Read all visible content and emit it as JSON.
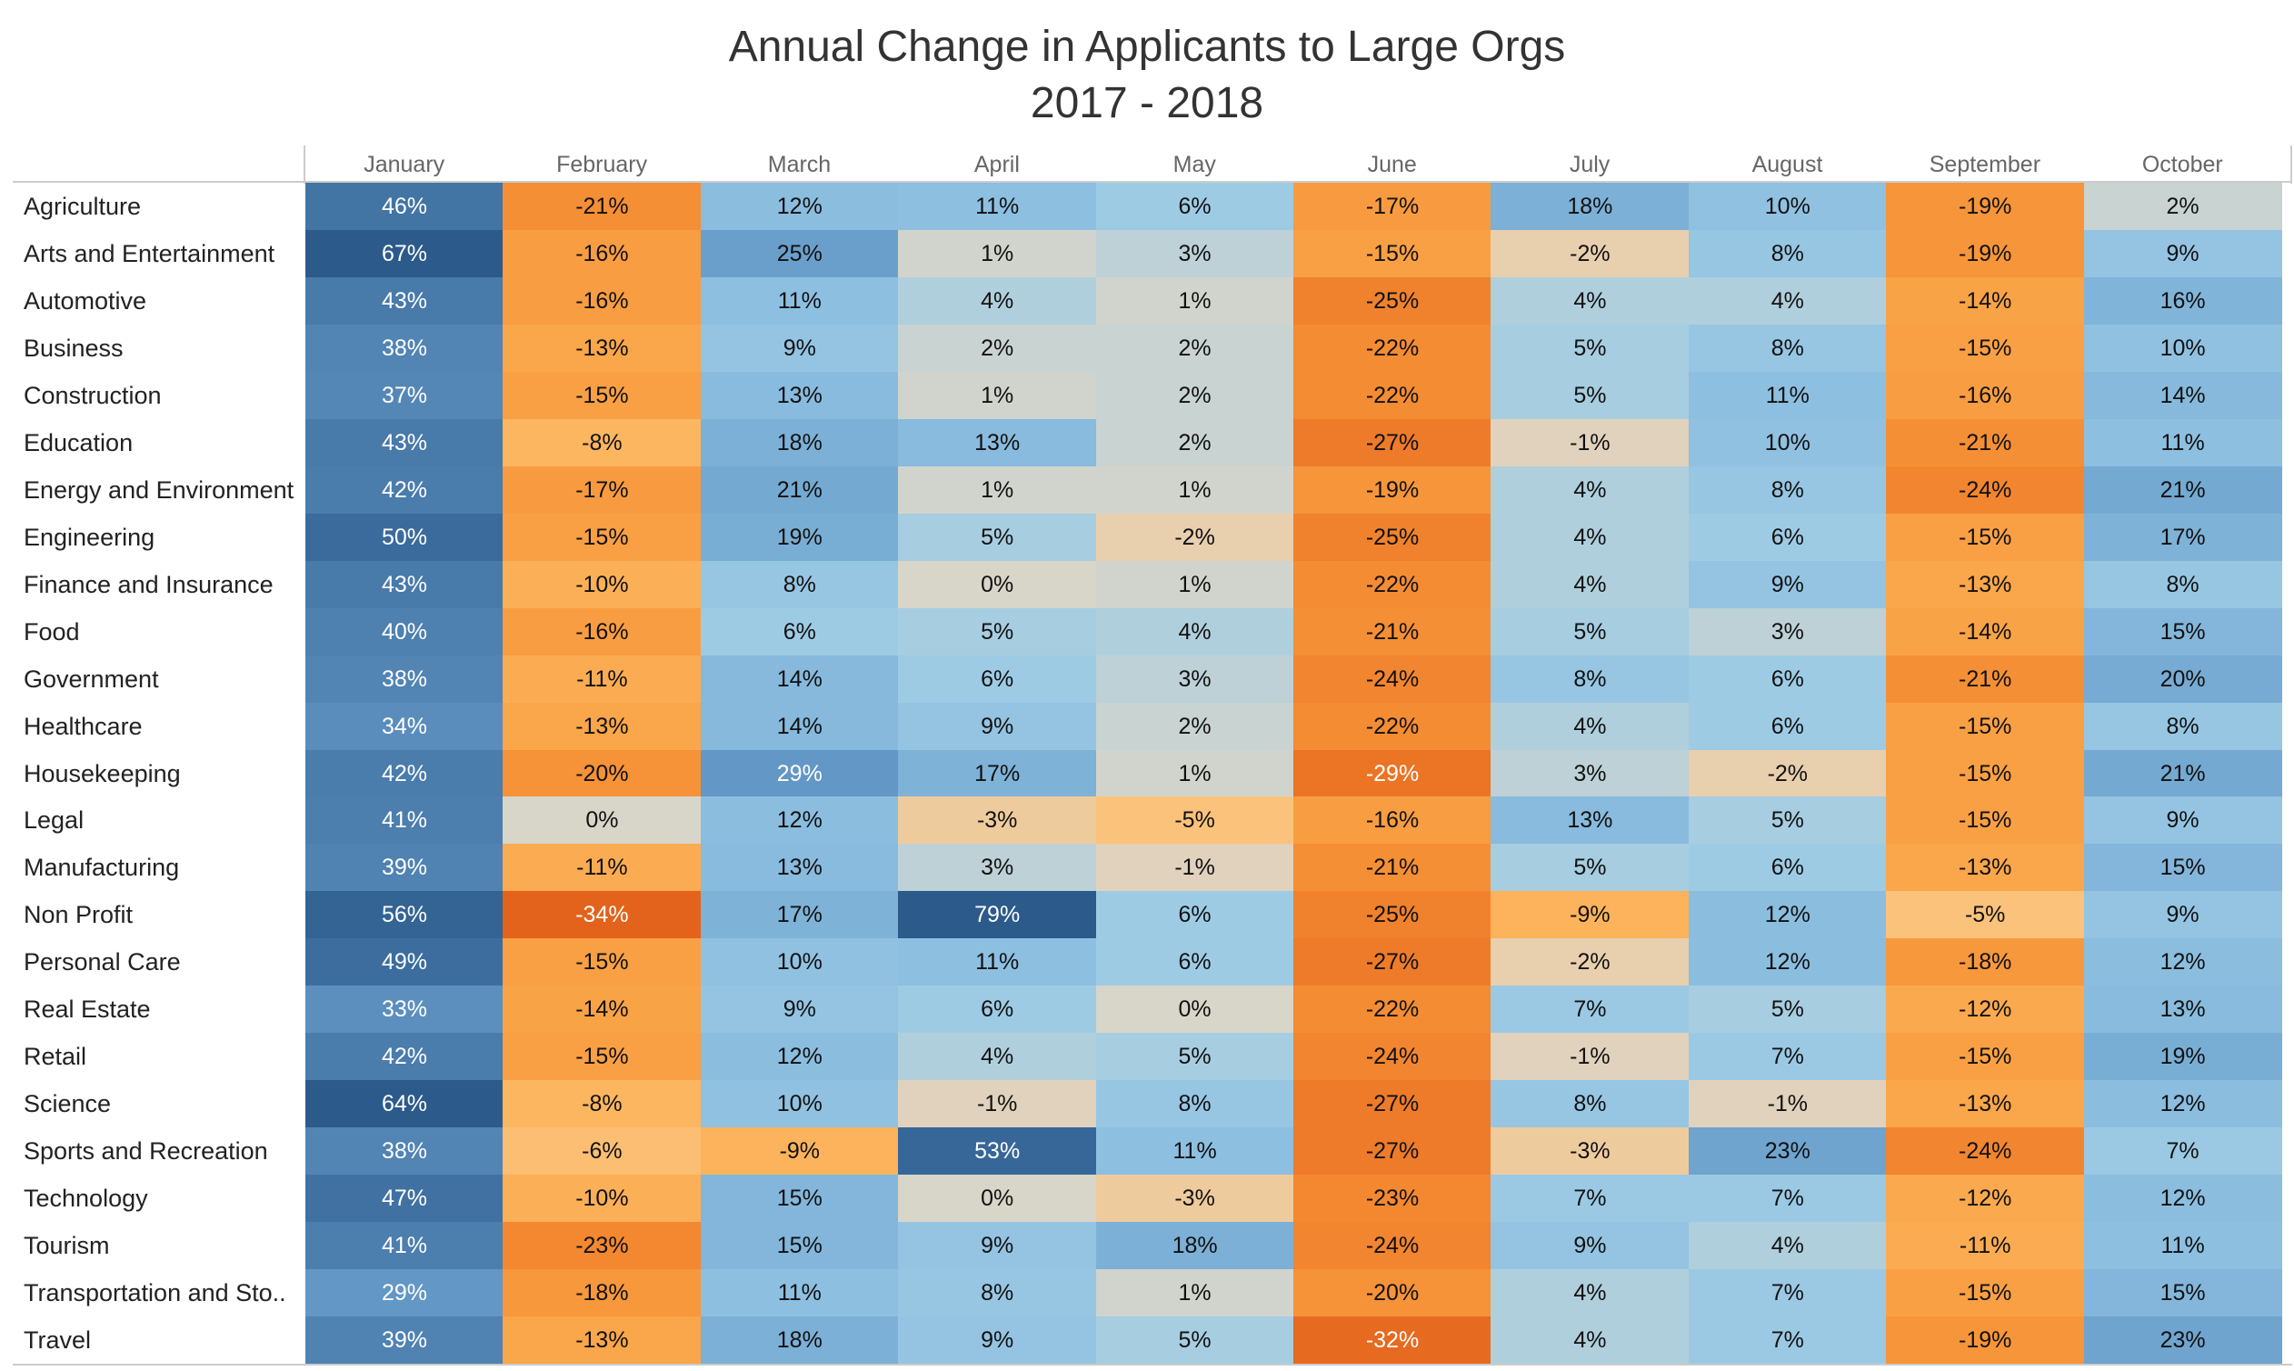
{
  "chart_data": {
    "type": "heatmap",
    "title": "Annual Change in Applicants to Large Orgs",
    "subtitle": "2017 - 2018",
    "xlabel": "",
    "ylabel": "",
    "value_format": "percent",
    "color_scale": {
      "type": "diverging",
      "negative_color": "#e3631c",
      "neutral_color": "#d4d6ce",
      "positive_color": "#2c5a8b",
      "center": 0
    },
    "columns": [
      "January",
      "February",
      "March",
      "April",
      "May",
      "June",
      "July",
      "August",
      "September",
      "October"
    ],
    "rows": [
      "Agriculture",
      "Arts and Entertainment",
      "Automotive",
      "Business",
      "Construction",
      "Education",
      "Energy and Environment",
      "Engineering",
      "Finance and Insurance",
      "Food",
      "Government",
      "Healthcare",
      "Housekeeping",
      "Legal",
      "Manufacturing",
      "Non Profit",
      "Personal Care",
      "Real Estate",
      "Retail",
      "Science",
      "Sports and Recreation",
      "Technology",
      "Tourism",
      "Transportation and Sto..",
      "Travel"
    ],
    "values": [
      [
        46,
        -21,
        12,
        11,
        6,
        -17,
        18,
        10,
        -19,
        2
      ],
      [
        67,
        -16,
        25,
        1,
        3,
        -15,
        -2,
        8,
        -19,
        9
      ],
      [
        43,
        -16,
        11,
        4,
        1,
        -25,
        4,
        4,
        -14,
        16
      ],
      [
        38,
        -13,
        9,
        2,
        2,
        -22,
        5,
        8,
        -15,
        10
      ],
      [
        37,
        -15,
        13,
        1,
        2,
        -22,
        5,
        11,
        -16,
        14
      ],
      [
        43,
        -8,
        18,
        13,
        2,
        -27,
        -1,
        10,
        -21,
        11
      ],
      [
        42,
        -17,
        21,
        1,
        1,
        -19,
        4,
        8,
        -24,
        21
      ],
      [
        50,
        -15,
        19,
        5,
        -2,
        -25,
        4,
        6,
        -15,
        17
      ],
      [
        43,
        -10,
        8,
        0,
        1,
        -22,
        4,
        9,
        -13,
        8
      ],
      [
        40,
        -16,
        6,
        5,
        4,
        -21,
        5,
        3,
        -14,
        15
      ],
      [
        38,
        -11,
        14,
        6,
        3,
        -24,
        8,
        6,
        -21,
        20
      ],
      [
        34,
        -13,
        14,
        9,
        2,
        -22,
        4,
        6,
        -15,
        8
      ],
      [
        42,
        -20,
        29,
        17,
        1,
        -29,
        3,
        -2,
        -15,
        21
      ],
      [
        41,
        0,
        12,
        -3,
        -5,
        -16,
        13,
        5,
        -15,
        9
      ],
      [
        39,
        -11,
        13,
        3,
        -1,
        -21,
        5,
        6,
        -13,
        15
      ],
      [
        56,
        -34,
        17,
        79,
        6,
        -25,
        -9,
        12,
        -5,
        9
      ],
      [
        49,
        -15,
        10,
        11,
        6,
        -27,
        -2,
        12,
        -18,
        12
      ],
      [
        33,
        -14,
        9,
        6,
        0,
        -22,
        7,
        5,
        -12,
        13
      ],
      [
        42,
        -15,
        12,
        4,
        5,
        -24,
        -1,
        7,
        -15,
        19
      ],
      [
        64,
        -8,
        10,
        -1,
        8,
        -27,
        8,
        -1,
        -13,
        12
      ],
      [
        38,
        -6,
        -9,
        53,
        11,
        -27,
        -3,
        23,
        -24,
        7
      ],
      [
        47,
        -10,
        15,
        0,
        -3,
        -23,
        7,
        7,
        -12,
        12
      ],
      [
        41,
        -23,
        15,
        9,
        18,
        -24,
        9,
        4,
        -11,
        11
      ],
      [
        29,
        -18,
        11,
        8,
        1,
        -20,
        4,
        7,
        -15,
        15
      ],
      [
        39,
        -13,
        18,
        9,
        5,
        -32,
        4,
        7,
        -19,
        23
      ]
    ]
  }
}
